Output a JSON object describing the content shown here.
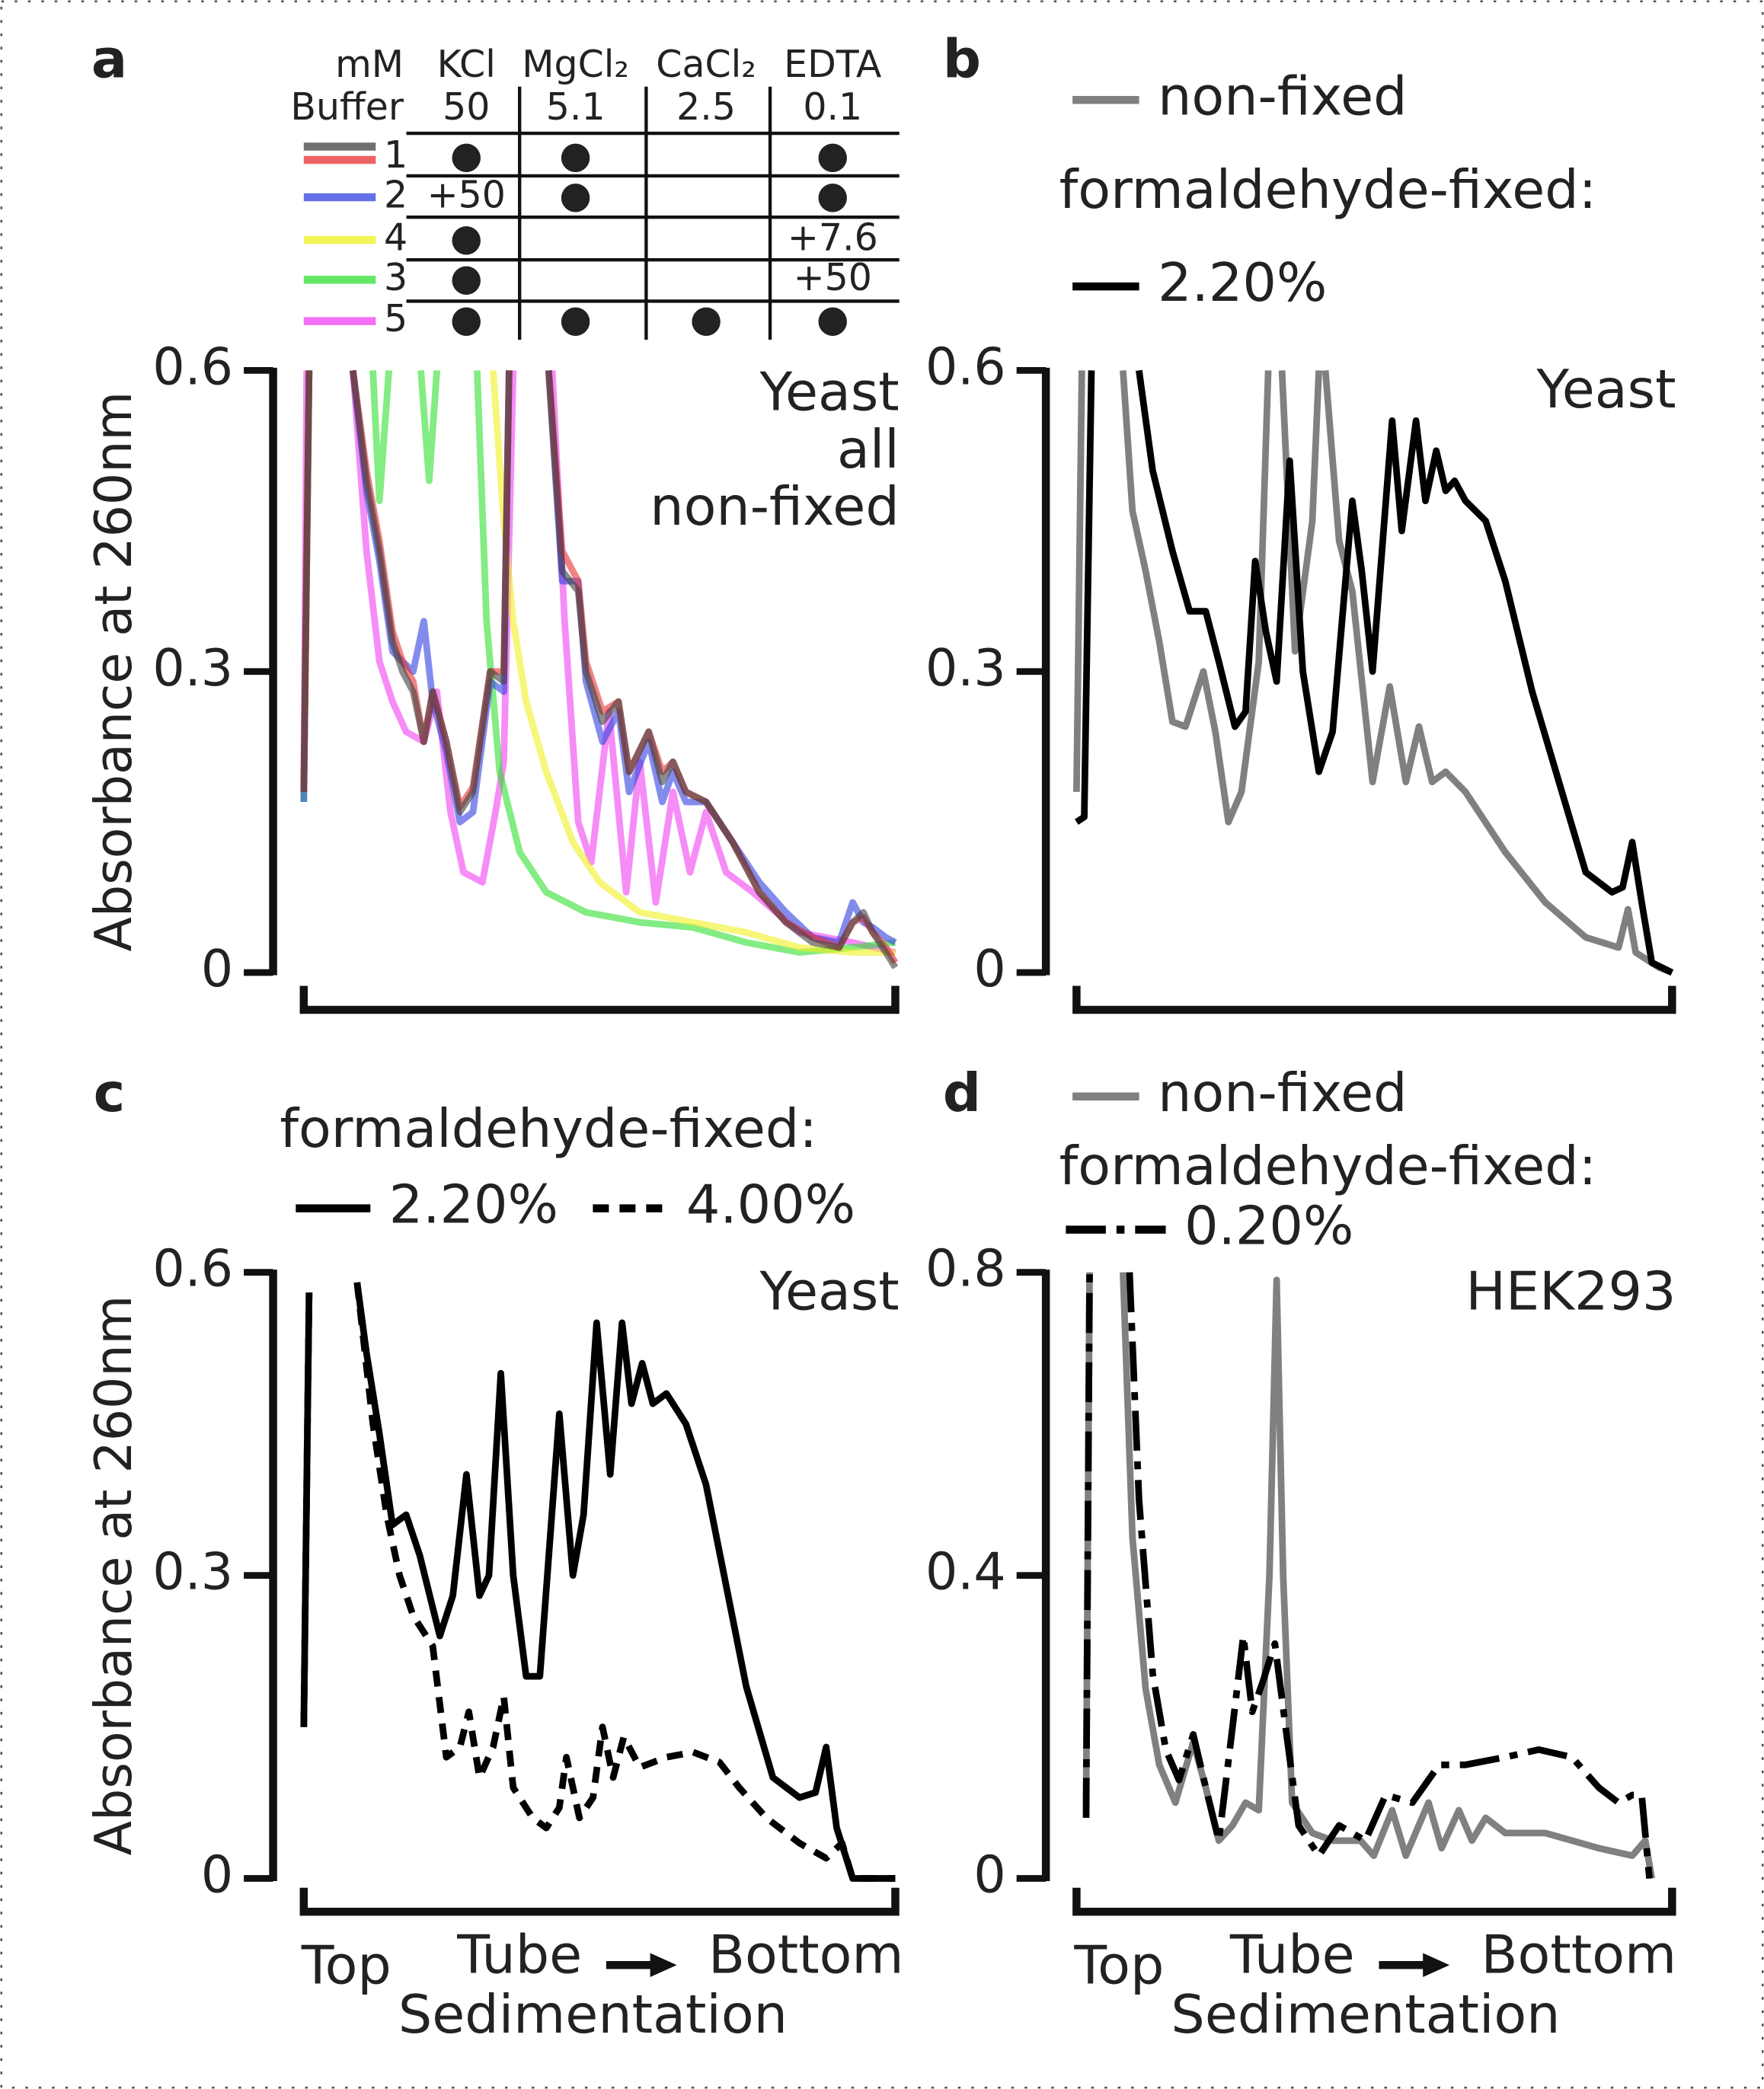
{
  "chart_data": [
    {
      "type": "line",
      "panel": "a",
      "xlim": [
        0,
        100
      ],
      "ylim": [
        0,
        0.6
      ],
      "yticks": [
        0,
        0.3,
        0.6
      ],
      "y_label": "Absorbance at 260nm",
      "annotation": [
        "Yeast",
        "all",
        "non-fixed"
      ],
      "table": {
        "units": "mM",
        "row_header": "Buffer",
        "columns": [
          "KCl",
          "MgCl₂",
          "CaCl₂",
          "EDTA"
        ],
        "concentrations": [
          50,
          5.1,
          2.5,
          0.1
        ],
        "rows": [
          [
            "●",
            "●",
            null,
            "●"
          ],
          [
            "+50",
            "●",
            null,
            "●"
          ],
          [
            "●",
            null,
            null,
            "+7.6"
          ],
          [
            "●",
            null,
            null,
            "+50"
          ],
          [
            "●",
            "●",
            "●",
            "●"
          ]
        ]
      },
      "series": [
        {
          "name": "5",
          "color": "#f040f0",
          "linestyle": "solid",
          "x": [
            0,
            0.5,
            null,
            8.3,
            10.6,
            12.8,
            15,
            17.3,
            20.3,
            22.5,
            24.8,
            27,
            30.2,
            32.4,
            33.8,
            35.4,
            null,
            42,
            44.1,
            46.4,
            48.6,
            51.6,
            54.5,
            56.8,
            59.5,
            62.4,
            65.3,
            68,
            71.4,
            75.9,
            83.8,
            92.8,
            100
          ],
          "values": [
            0.18,
            0.6,
            null,
            0.6,
            0.42,
            0.31,
            0.27,
            0.24,
            0.23,
            0.28,
            0.16,
            0.1,
            0.09,
            0.16,
            0.21,
            0.6,
            null,
            0.6,
            0.35,
            0.15,
            0.11,
            0.26,
            0.08,
            0.21,
            0.07,
            0.18,
            0.1,
            0.16,
            0.1,
            0.08,
            0.04,
            0.03,
            0.02
          ]
        },
        {
          "name": "3",
          "color": "#30e030",
          "linestyle": "solid",
          "x": [
            0,
            0.9,
            null,
            11.7,
            12.8,
            14.4,
            null,
            19.8,
            21.2,
            22.5,
            null,
            29.3,
            30.9,
            33.1,
            36.5,
            41,
            47.7,
            56.8,
            65.8,
            74.8,
            83.8,
            92.8,
            100
          ],
          "values": [
            0.17,
            0.6,
            null,
            0.6,
            0.47,
            0.6,
            null,
            0.6,
            0.49,
            0.6,
            null,
            0.6,
            0.35,
            0.2,
            0.12,
            0.08,
            0.06,
            0.05,
            0.045,
            0.03,
            0.02,
            0.025,
            0.03
          ]
        },
        {
          "name": "4",
          "color": "#f0f020",
          "linestyle": "solid",
          "x": [
            0,
            0.9,
            null,
            32,
            33.8,
            35.4,
            37.6,
            41,
            45.5,
            50,
            56.8,
            65.8,
            74.8,
            83.8,
            92.8,
            100
          ],
          "values": [
            0.18,
            0.6,
            null,
            0.6,
            0.45,
            0.35,
            0.27,
            0.2,
            0.13,
            0.09,
            0.06,
            0.05,
            0.04,
            0.025,
            0.02,
            0.02
          ]
        },
        {
          "name": "2",
          "color": "#3040e0",
          "linestyle": "solid",
          "x": [
            0,
            0.9,
            null,
            8.3,
            10.6,
            12.8,
            15,
            16.7,
            18.5,
            20.3,
            21.8,
            24.1,
            26.4,
            28.6,
            31.5,
            33.8,
            34.7,
            null,
            41.4,
            43.7,
            46.4,
            47.7,
            50.5,
            53.2,
            55,
            58.3,
            60.6,
            62.4,
            64.6,
            68,
            72.5,
            77,
            81.5,
            86,
            90.5,
            92.8,
            94.6,
            96.2,
            98.4,
            100
          ],
          "values": [
            0.17,
            0.6,
            null,
            0.6,
            0.48,
            0.41,
            0.32,
            0.31,
            0.3,
            0.35,
            0.27,
            0.22,
            0.15,
            0.16,
            0.29,
            0.28,
            0.6,
            null,
            0.6,
            0.39,
            0.39,
            0.29,
            0.23,
            0.26,
            0.18,
            0.23,
            0.17,
            0.2,
            0.17,
            0.17,
            0.13,
            0.09,
            0.06,
            0.035,
            0.03,
            0.07,
            0.05,
            0.045,
            0.035,
            0.03
          ]
        },
        {
          "name": "1",
          "color": "#e83030",
          "linestyle": "solid",
          "x": [
            0,
            0.9,
            null,
            8.3,
            10.6,
            12.8,
            15,
            16.7,
            18.5,
            20.3,
            21.8,
            24.1,
            26.4,
            28.6,
            31.5,
            33.8,
            34.7,
            null,
            41.4,
            43.7,
            46.4,
            47.7,
            50.5,
            53.2,
            55,
            58.3,
            60.6,
            62.4,
            64.6,
            68,
            72.5,
            77,
            81.5,
            86,
            90.5,
            92.8,
            94.6,
            96.2,
            98.4,
            100
          ],
          "values": [
            0.18,
            0.6,
            null,
            0.6,
            0.5,
            0.43,
            0.34,
            0.31,
            0.29,
            0.23,
            0.28,
            0.23,
            0.165,
            0.185,
            0.3,
            0.3,
            0.6,
            null,
            0.6,
            0.42,
            0.39,
            0.31,
            0.26,
            0.27,
            0.2,
            0.24,
            0.2,
            0.21,
            0.18,
            0.17,
            0.13,
            0.08,
            0.05,
            0.035,
            0.025,
            0.05,
            0.055,
            0.04,
            0.025,
            0.01
          ]
        },
        {
          "name": "1",
          "color": "#404040",
          "linestyle": "solid",
          "x": [
            0,
            0.9,
            null,
            8.3,
            10.6,
            12.8,
            15,
            16.7,
            18.5,
            20.3,
            21.8,
            24.1,
            26.4,
            28.6,
            31.5,
            33.8,
            34.7,
            null,
            41.4,
            43.7,
            46.4,
            47.7,
            50.5,
            53.2,
            55,
            58.3,
            60.6,
            62.4,
            64.6,
            68,
            72.5,
            77,
            81.5,
            86,
            90.5,
            92.8,
            94.6,
            96.2,
            98.4,
            100
          ],
          "values": [
            0.18,
            0.6,
            null,
            0.6,
            0.49,
            0.42,
            0.33,
            0.3,
            0.28,
            0.23,
            0.28,
            0.23,
            0.16,
            0.18,
            0.3,
            0.29,
            0.6,
            null,
            0.6,
            0.4,
            0.38,
            0.3,
            0.25,
            0.27,
            0.2,
            0.24,
            0.19,
            0.21,
            0.18,
            0.17,
            0.13,
            0.08,
            0.05,
            0.03,
            0.025,
            0.05,
            0.06,
            0.04,
            0.02,
            0.005
          ]
        }
      ]
    },
    {
      "type": "line",
      "panel": "b",
      "xlim": [
        0,
        100
      ],
      "ylim": [
        0,
        0.6
      ],
      "yticks": [
        0,
        0.3,
        0.6
      ],
      "annotation": [
        "Yeast"
      ],
      "legend_title": "formaldehyde-fixed:",
      "series": [
        {
          "name": "non-fixed",
          "color": "#808080",
          "linestyle": "solid",
          "x": [
            0,
            0.9,
            null,
            7.8,
            9.4,
            11.6,
            13.9,
            16.1,
            18.3,
            21.3,
            23.3,
            25.5,
            27.7,
            30.6,
            32.2,
            null,
            34.5,
            36.7,
            39.6,
            40.7,
            null,
            41.8,
            44.1,
            46.3,
            49.7,
            52.6,
            55.3,
            57.5,
            59.7,
            62,
            65.3,
            72,
            78.7,
            85.5,
            91,
            92.6,
            93.9,
            97.8,
            100
          ],
          "values": [
            0.18,
            0.6,
            null,
            0.6,
            0.46,
            0.4,
            0.33,
            0.25,
            0.245,
            0.3,
            0.24,
            0.15,
            0.18,
            0.31,
            0.6,
            null,
            0.6,
            0.32,
            0.45,
            0.6,
            null,
            0.6,
            0.43,
            0.38,
            0.19,
            0.285,
            0.19,
            0.245,
            0.19,
            0.2,
            0.18,
            0.12,
            0.07,
            0.035,
            0.025,
            0.063,
            0.02,
            0.005,
            0
          ]
        },
        {
          "name": "2.20%",
          "color": "#000000",
          "linestyle": "solid",
          "x": [
            0,
            1.3,
            2.5,
            null,
            10.5,
            12.8,
            16.1,
            19,
            21.7,
            23.9,
            26.6,
            28.4,
            30,
            31.8,
            33.6,
            35.8,
            38,
            40.7,
            43,
            46.3,
            47.9,
            49.7,
            53,
            54.6,
            57,
            58.6,
            60.4,
            62,
            63.5,
            65.3,
            68.7,
            72,
            76.5,
            81,
            85.5,
            89.9,
            91.7,
            93.3,
            94.9,
            96.6,
            100
          ],
          "values": [
            0.15,
            0.155,
            0.6,
            null,
            0.6,
            0.5,
            0.42,
            0.36,
            0.36,
            0.31,
            0.245,
            0.26,
            0.41,
            0.34,
            0.29,
            0.51,
            0.3,
            0.2,
            0.24,
            0.47,
            0.4,
            0.3,
            0.55,
            0.44,
            0.55,
            0.47,
            0.52,
            0.48,
            0.49,
            0.47,
            0.45,
            0.39,
            0.28,
            0.19,
            0.1,
            0.08,
            0.085,
            0.13,
            0.07,
            0.01,
            0
          ]
        }
      ]
    },
    {
      "type": "line",
      "panel": "c",
      "xlim": [
        0,
        100
      ],
      "ylim": [
        0,
        0.6
      ],
      "yticks": [
        0,
        0.3,
        0.6
      ],
      "y_label": "Absorbance at 260nm",
      "annotation": [
        "Yeast"
      ],
      "legend_title": "formaldehyde-fixed:",
      "x_labels": {
        "start": "Top",
        "middle": "Tube",
        "end": "Bottom",
        "title": "Sedimentation"
      },
      "series": [
        {
          "name": "2.20%",
          "color": "#000000",
          "linestyle": "solid",
          "x": [
            0,
            0.9,
            null,
            9,
            10.6,
            12.8,
            15,
            17.3,
            19.6,
            23,
            25.2,
            27.5,
            29.7,
            31.3,
            33.3,
            35.4,
            37.6,
            39.9,
            43.2,
            45.5,
            47.3,
            49.5,
            51.8,
            53.8,
            55.4,
            57.2,
            59,
            61.3,
            64.6,
            68,
            71.4,
            74.8,
            79.3,
            83.8,
            86.5,
            88.3,
            90.1,
            92.8,
            100
          ],
          "values": [
            0.15,
            0.58,
            null,
            0.59,
            0.52,
            0.44,
            0.35,
            0.36,
            0.32,
            0.24,
            0.28,
            0.4,
            0.28,
            0.3,
            0.5,
            0.3,
            0.2,
            0.2,
            0.46,
            0.3,
            0.36,
            0.55,
            0.4,
            0.55,
            0.47,
            0.51,
            0.47,
            0.48,
            0.45,
            0.39,
            0.29,
            0.19,
            0.1,
            0.08,
            0.085,
            0.13,
            0.05,
            0,
            0
          ]
        },
        {
          "name": "4.00%",
          "color": "#000000",
          "linestyle": "dashed",
          "x": [
            0,
            0.9,
            null,
            9,
            11.7,
            14,
            16.2,
            18.5,
            21.8,
            24.1,
            26.4,
            27.9,
            29.7,
            32,
            33.8,
            35.4,
            38.7,
            41,
            43.2,
            44.4,
            46.6,
            48.9,
            50.5,
            52.3,
            54.1,
            56.8,
            61.3,
            65.8,
            70.3,
            73.6,
            78.2,
            83.8,
            88.3,
            91,
            92.8,
            100
          ],
          "values": [
            0.15,
            0.58,
            null,
            0.59,
            0.45,
            0.36,
            0.3,
            0.26,
            0.23,
            0.12,
            0.13,
            0.165,
            0.1,
            0.13,
            0.18,
            0.09,
            0.06,
            0.05,
            0.07,
            0.12,
            0.06,
            0.08,
            0.15,
            0.1,
            0.14,
            0.11,
            0.12,
            0.125,
            0.115,
            0.09,
            0.06,
            0.035,
            0.02,
            0.035,
            0,
            0
          ]
        }
      ]
    },
    {
      "type": "line",
      "panel": "d",
      "xlim": [
        0,
        100
      ],
      "ylim": [
        0,
        0.8
      ],
      "yticks": [
        0,
        0.4,
        0.8
      ],
      "annotation": [
        "HEK293"
      ],
      "legend_title": "formaldehyde-fixed:",
      "x_labels": {
        "start": "Top",
        "middle": "Tube",
        "end": "Bottom",
        "title": "Sedimentation"
      },
      "series": [
        {
          "name": "non-fixed",
          "color": "#808080",
          "linestyle": "solid",
          "x": [
            1.6,
            2.2,
            null,
            7.8,
            9.4,
            11.6,
            13.9,
            16.6,
            19.6,
            21.7,
            23.9,
            26.2,
            28.4,
            30.6,
            32.4,
            33.6,
            34.7,
            36.2,
            39.6,
            43,
            47.7,
            49.9,
            53,
            55.3,
            59.1,
            61.3,
            64.2,
            66.4,
            68.7,
            72,
            78.7,
            87.7,
            93.3,
            95.5,
            96.6
          ],
          "values": [
            0.1,
            0.8,
            null,
            0.8,
            0.45,
            0.25,
            0.15,
            0.1,
            0.18,
            0.12,
            0.05,
            0.07,
            0.1,
            0.09,
            0.4,
            0.79,
            0.4,
            0.1,
            0.06,
            0.05,
            0.05,
            0.03,
            0.09,
            0.03,
            0.1,
            0.04,
            0.09,
            0.05,
            0.08,
            0.06,
            0.06,
            0.04,
            0.03,
            0.05,
            0
          ]
        },
        {
          "name": "0.20%",
          "color": "#000000",
          "linestyle": "dashdot",
          "x": [
            1.6,
            2.2,
            null,
            8.9,
            10.5,
            12.8,
            15,
            17.2,
            19.6,
            21.7,
            23.9,
            26.2,
            28,
            29.5,
            31.3,
            33.3,
            35.1,
            37.3,
            40.7,
            44.1,
            48.5,
            51.9,
            56.4,
            60.9,
            65.3,
            72,
            77.6,
            83.2,
            87.7,
            91,
            93.3,
            94.9,
            96.2
          ],
          "values": [
            0.08,
            0.8,
            null,
            0.8,
            0.5,
            0.27,
            0.17,
            0.13,
            0.19,
            0.12,
            0.05,
            0.2,
            0.32,
            0.22,
            0.26,
            0.31,
            0.2,
            0.07,
            0.03,
            0.07,
            0.05,
            0.11,
            0.1,
            0.15,
            0.15,
            0.16,
            0.17,
            0.16,
            0.12,
            0.1,
            0.11,
            0.11,
            0
          ]
        }
      ]
    }
  ]
}
